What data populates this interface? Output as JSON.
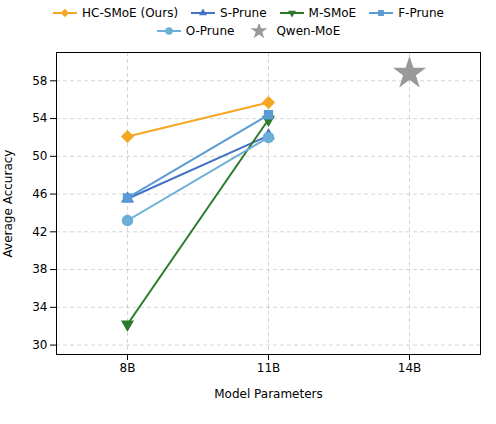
{
  "chart_data": {
    "type": "line",
    "xlabel": "Model Parameters",
    "ylabel": "Average Accuracy",
    "categories": [
      "8B",
      "11B",
      "14B"
    ],
    "ylim": [
      29,
      61
    ],
    "yticks": [
      30,
      34,
      38,
      42,
      46,
      50,
      54,
      58
    ],
    "grid": true,
    "legend": "top",
    "series": [
      {
        "name": "HC-SMoE (Ours)",
        "color": "#F5A623",
        "marker": "diamond",
        "line_style": "solid",
        "type": "line",
        "values": [
          52.1,
          55.7,
          null
        ]
      },
      {
        "name": "S-Prune",
        "color": "#4472C4",
        "marker": "triangle-up",
        "line_style": "solid",
        "type": "line",
        "values": [
          45.5,
          52.2,
          null
        ]
      },
      {
        "name": "M-SMoE",
        "color": "#2A7A2A",
        "marker": "triangle-down",
        "line_style": "solid",
        "type": "line",
        "values": [
          32.2,
          53.9,
          null
        ]
      },
      {
        "name": "F-Prune",
        "color": "#5B9BD5",
        "marker": "square",
        "line_style": "solid",
        "type": "line",
        "values": [
          45.6,
          54.4,
          null
        ]
      },
      {
        "name": "O-Prune",
        "color": "#6BAED6",
        "marker": "circle",
        "line_style": "solid",
        "type": "line",
        "values": [
          43.2,
          52.0,
          null
        ]
      },
      {
        "name": "Qwen-MoE",
        "color": "#999999",
        "marker": "star",
        "type": "scatter",
        "values": [
          null,
          null,
          58.8
        ]
      }
    ]
  }
}
